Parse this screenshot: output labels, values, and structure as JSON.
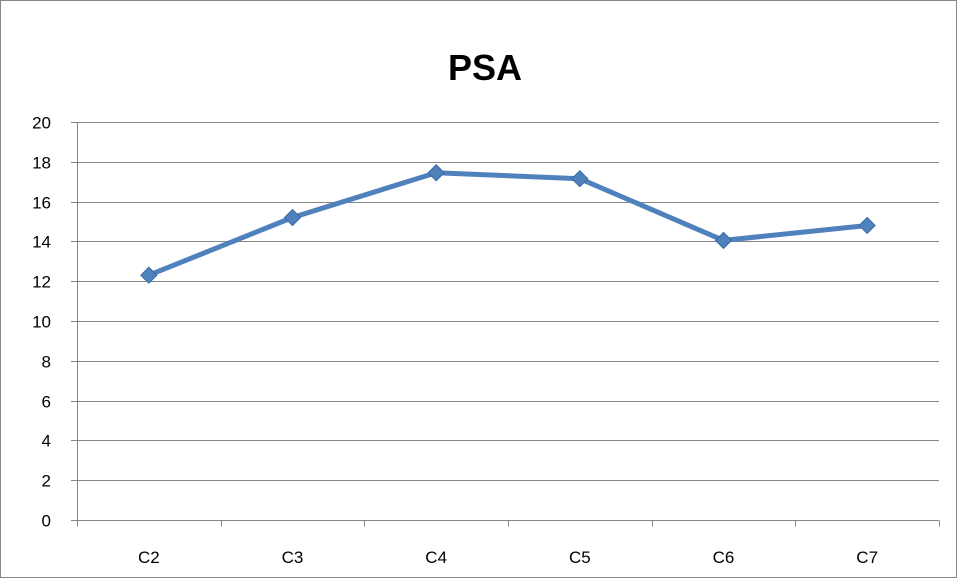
{
  "chart_data": {
    "type": "line",
    "title": "PSA",
    "xlabel": "",
    "ylabel": "",
    "categories": [
      "C2",
      "C3",
      "C4",
      "C5",
      "C6",
      "C7"
    ],
    "series": [
      {
        "values": [
          12.3,
          15.2,
          17.45,
          17.15,
          14.05,
          14.8
        ]
      }
    ],
    "ylim": [
      0,
      20
    ],
    "yticks": [
      0,
      2,
      4,
      6,
      8,
      10,
      12,
      14,
      16,
      18,
      20
    ],
    "grid": true,
    "legend": "none",
    "colors": {
      "series": "#4f81bd",
      "grid": "#868686",
      "axis": "#868686"
    }
  }
}
